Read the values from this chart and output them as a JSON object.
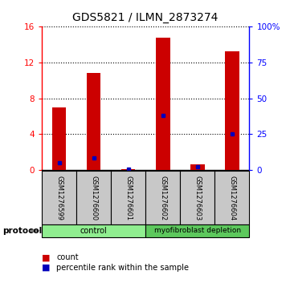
{
  "title": "GDS5821 / ILMN_2873274",
  "samples": [
    "GSM1276599",
    "GSM1276600",
    "GSM1276601",
    "GSM1276602",
    "GSM1276603",
    "GSM1276604"
  ],
  "counts": [
    7.0,
    10.8,
    0.08,
    14.7,
    0.65,
    13.2
  ],
  "percentiles": [
    5.0,
    8.5,
    1.0,
    38.0,
    2.5,
    25.0
  ],
  "groups": [
    {
      "label": "control",
      "start": 0,
      "end": 3,
      "color": "#90EE90"
    },
    {
      "label": "myofibroblast depletion",
      "start": 3,
      "end": 6,
      "color": "#5DC85D"
    }
  ],
  "left_ylim": [
    0,
    16
  ],
  "left_yticks": [
    0,
    4,
    8,
    12,
    16
  ],
  "right_ylim": [
    0,
    100
  ],
  "right_yticks": [
    0,
    25,
    50,
    75,
    100
  ],
  "right_yticklabels": [
    "0",
    "25",
    "50",
    "75",
    "100%"
  ],
  "bar_color": "#CC0000",
  "marker_color": "#0000BB",
  "sample_box_color": "#C8C8C8",
  "title_fontsize": 10,
  "legend_items": [
    "count",
    "percentile rank within the sample"
  ],
  "protocol_label": "protocol"
}
